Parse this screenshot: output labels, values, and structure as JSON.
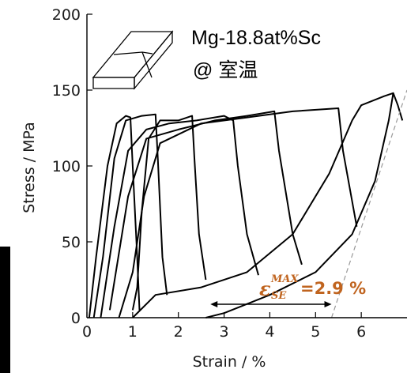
{
  "chart_data": {
    "type": "line",
    "xlabel": "Strain / %",
    "ylabel": "Stress / MPa",
    "xlim": [
      0,
      7
    ],
    "ylim": [
      0,
      200
    ],
    "x_ticks": [
      "0",
      "1",
      "2",
      "3",
      "4",
      "5",
      "6"
    ],
    "y_ticks": [
      "0",
      "50",
      "100",
      "150",
      "200"
    ],
    "grid": false,
    "legend": "none",
    "series": [
      {
        "points": [
          [
            0.05,
            0
          ],
          [
            0.2,
            40
          ],
          [
            0.45,
            100
          ],
          [
            0.65,
            128
          ],
          [
            0.85,
            133
          ],
          [
            0.95,
            132
          ],
          [
            1.0,
            100
          ],
          [
            1.1,
            40
          ],
          [
            1.15,
            5
          ]
        ]
      },
      {
        "points": [
          [
            0.15,
            0
          ],
          [
            0.35,
            40
          ],
          [
            0.6,
            105
          ],
          [
            0.85,
            130
          ],
          [
            1.2,
            133
          ],
          [
            1.5,
            134
          ],
          [
            1.55,
            105
          ],
          [
            1.65,
            40
          ],
          [
            1.75,
            15
          ]
        ]
      },
      {
        "points": [
          [
            1.0,
            5
          ],
          [
            1.1,
            20
          ],
          [
            1.2,
            70
          ],
          [
            1.35,
            118
          ],
          [
            1.6,
            130
          ],
          [
            2.0,
            130
          ],
          [
            2.3,
            133
          ],
          [
            2.35,
            105
          ],
          [
            2.45,
            55
          ],
          [
            2.6,
            25
          ]
        ]
      },
      {
        "points": [
          [
            0.3,
            0
          ],
          [
            0.6,
            60
          ],
          [
            0.9,
            110
          ],
          [
            1.3,
            124
          ],
          [
            1.8,
            128
          ],
          [
            2.4,
            130
          ],
          [
            3.0,
            133
          ],
          [
            3.2,
            130
          ],
          [
            3.3,
            100
          ],
          [
            3.5,
            55
          ],
          [
            3.75,
            28
          ]
        ]
      },
      {
        "points": [
          [
            0.5,
            5
          ],
          [
            0.9,
            80
          ],
          [
            1.3,
            118
          ],
          [
            2.0,
            124
          ],
          [
            2.8,
            130
          ],
          [
            3.5,
            133
          ],
          [
            4.1,
            136
          ],
          [
            4.2,
            110
          ],
          [
            4.5,
            55
          ],
          [
            4.7,
            35
          ]
        ]
      },
      {
        "points": [
          [
            0.7,
            0
          ],
          [
            1.0,
            30
          ],
          [
            1.25,
            80
          ],
          [
            1.6,
            115
          ],
          [
            2.5,
            128
          ],
          [
            3.5,
            132
          ],
          [
            4.5,
            136
          ],
          [
            5.5,
            138
          ],
          [
            5.6,
            110
          ],
          [
            5.9,
            60
          ]
        ]
      },
      {
        "points": [
          [
            1.0,
            0
          ],
          [
            1.5,
            15
          ],
          [
            2.5,
            20
          ],
          [
            3.5,
            30
          ],
          [
            4.5,
            55
          ],
          [
            5.3,
            95
          ],
          [
            5.8,
            130
          ],
          [
            6.0,
            140
          ],
          [
            6.5,
            146
          ],
          [
            6.7,
            148
          ],
          [
            6.8,
            140
          ],
          [
            6.9,
            130
          ]
        ]
      },
      {
        "points": [
          [
            2.6,
            0
          ],
          [
            3.0,
            3
          ],
          [
            4.0,
            15
          ],
          [
            5.0,
            30
          ],
          [
            5.8,
            55
          ],
          [
            6.3,
            90
          ],
          [
            6.6,
            130
          ],
          [
            6.7,
            148
          ]
        ]
      }
    ],
    "annotations": {
      "material": "Mg-18.8at%Sc",
      "condition": "@ 室温",
      "epsilon_symbol": "ε",
      "epsilon_sup": "MAX",
      "epsilon_sub": "SE",
      "epsilon_value": "=2.9 %",
      "arrow_range": [
        2.7,
        5.35
      ],
      "dashed_line": [
        [
          5.35,
          0
        ],
        [
          7.0,
          150
        ]
      ]
    },
    "colors": {
      "curves": "#000000",
      "annotation": "#c0641f",
      "dashed": "#999999"
    }
  }
}
